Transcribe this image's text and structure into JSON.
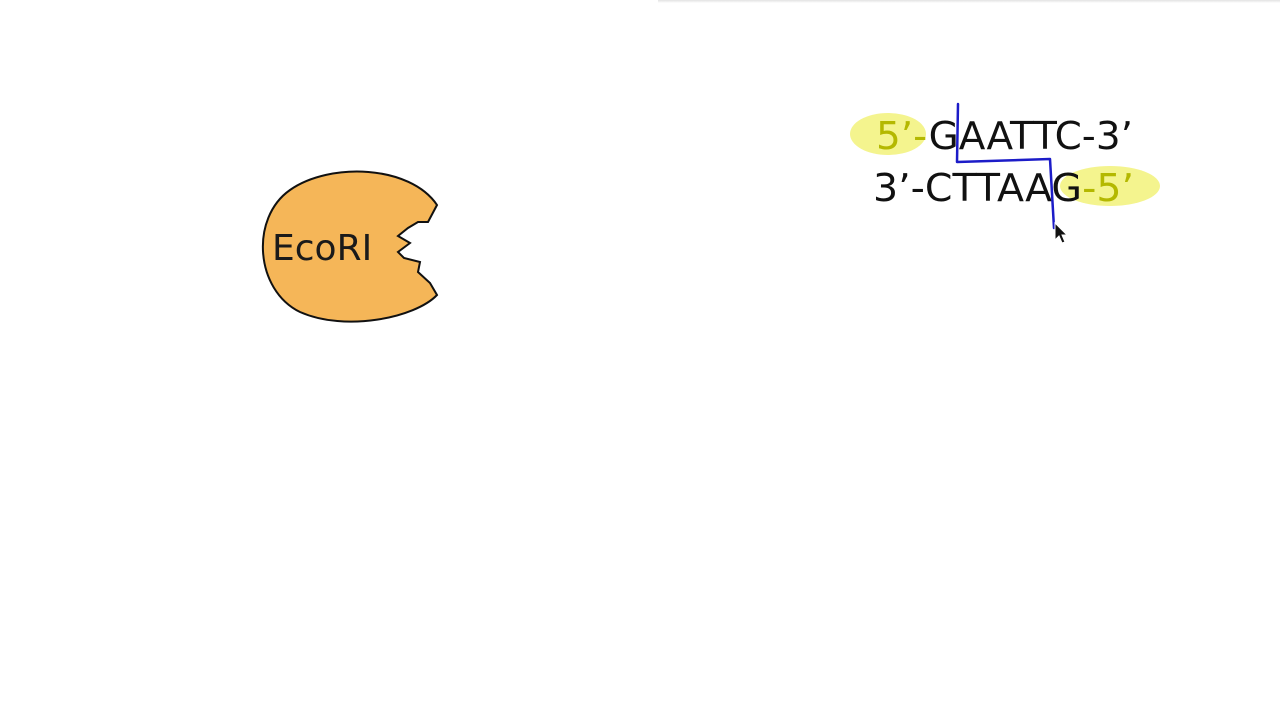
{
  "enzyme": {
    "label": "EcoRI",
    "fill_color": "#f5b658"
  },
  "dna": {
    "top_strand": {
      "five_prime_end": "5’-",
      "sequence": "GAATTC",
      "three_prime_end": "-3’"
    },
    "bottom_strand": {
      "three_prime_end": "3’-",
      "sequence": "CTTAAG",
      "five_prime_end": "-5’"
    },
    "highlight_color": "#f2f27a",
    "end_label_color": "#b4b800",
    "cut_line_color": "#1c1cc8"
  }
}
